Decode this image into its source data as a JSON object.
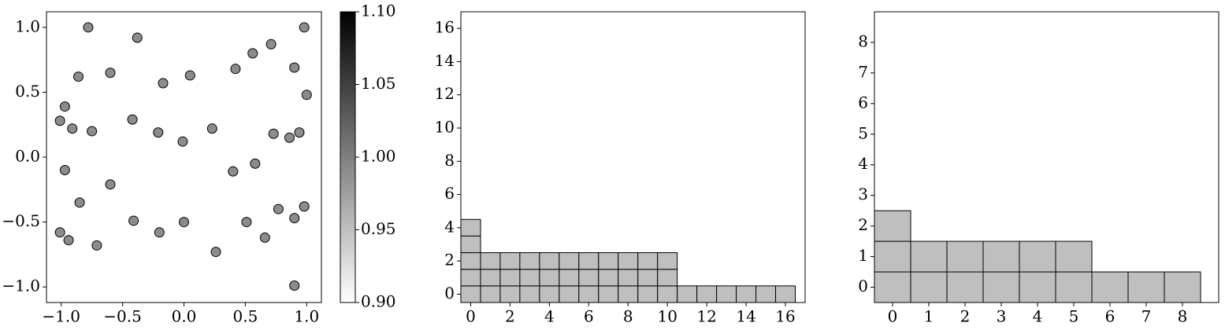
{
  "chart_data": [
    {
      "type": "scatter",
      "xlim": [
        -1.12,
        1.12
      ],
      "ylim": [
        -1.12,
        1.12
      ],
      "xticks": [
        -1.0,
        -0.5,
        0.0,
        0.5,
        1.0
      ],
      "xtick_labels": [
        "−1.0",
        "−0.5",
        "0.0",
        "0.5",
        "1.0"
      ],
      "yticks": [
        1.0,
        0.5,
        0.0,
        -0.5,
        -1.0
      ],
      "ytick_labels": [
        "1.0",
        "0.5",
        "0.0",
        "−0.5",
        "−1.0"
      ],
      "marker_color": "#8c8c8c",
      "points": [
        [
          -0.78,
          1.0
        ],
        [
          -0.38,
          0.92
        ],
        [
          -0.86,
          0.62
        ],
        [
          -0.6,
          0.65
        ],
        [
          -0.17,
          0.57
        ],
        [
          0.05,
          0.63
        ],
        [
          0.42,
          0.68
        ],
        [
          0.56,
          0.8
        ],
        [
          0.71,
          0.87
        ],
        [
          0.98,
          1.0
        ],
        [
          0.9,
          0.69
        ],
        [
          -0.97,
          0.39
        ],
        [
          1.0,
          0.48
        ],
        [
          -1.01,
          0.28
        ],
        [
          -0.91,
          0.22
        ],
        [
          -0.75,
          0.2
        ],
        [
          -0.42,
          0.29
        ],
        [
          -0.21,
          0.19
        ],
        [
          -0.01,
          0.12
        ],
        [
          0.23,
          0.22
        ],
        [
          0.73,
          0.18
        ],
        [
          0.86,
          0.15
        ],
        [
          0.94,
          0.19
        ],
        [
          -0.97,
          -0.1
        ],
        [
          0.4,
          -0.11
        ],
        [
          0.58,
          -0.05
        ],
        [
          -0.6,
          -0.21
        ],
        [
          -0.85,
          -0.35
        ],
        [
          0.77,
          -0.4
        ],
        [
          0.98,
          -0.38
        ],
        [
          -0.41,
          -0.49
        ],
        [
          0.0,
          -0.5
        ],
        [
          0.51,
          -0.5
        ],
        [
          0.9,
          -0.47
        ],
        [
          -1.01,
          -0.58
        ],
        [
          -0.94,
          -0.64
        ],
        [
          -0.2,
          -0.58
        ],
        [
          0.66,
          -0.62
        ],
        [
          -0.71,
          -0.68
        ],
        [
          0.26,
          -0.73
        ],
        [
          0.9,
          -0.99
        ]
      ]
    },
    {
      "type": "colorbar",
      "range": [
        0.9,
        1.1
      ],
      "ticks": [
        1.1,
        1.05,
        1.0,
        0.95,
        0.9
      ],
      "tick_labels": [
        "1.10",
        "1.05",
        "1.00",
        "0.95",
        "0.90"
      ],
      "colors": [
        "#ffffff",
        "#000000"
      ]
    },
    {
      "type": "bar",
      "xlim": [
        -0.5,
        17
      ],
      "ylim": [
        -0.5,
        17
      ],
      "xticks": [
        0,
        2,
        4,
        6,
        8,
        10,
        12,
        14,
        16
      ],
      "xtick_labels": [
        "0",
        "2",
        "4",
        "6",
        "8",
        "10",
        "12",
        "14",
        "16"
      ],
      "yticks": [
        16,
        14,
        12,
        10,
        8,
        6,
        4,
        2,
        0
      ],
      "ytick_labels": [
        "16",
        "14",
        "12",
        "10",
        "8",
        "6",
        "4",
        "2",
        "0"
      ],
      "categories": [
        0,
        1,
        2,
        3,
        4,
        5,
        6,
        7,
        8,
        9,
        10,
        11,
        12,
        13,
        14,
        15,
        16
      ],
      "values": [
        5,
        3,
        3,
        3,
        3,
        3,
        3,
        3,
        3,
        3,
        3,
        1,
        1,
        1,
        1,
        1,
        1
      ],
      "fill": "#bfbfbf"
    },
    {
      "type": "bar",
      "xlim": [
        -0.5,
        9
      ],
      "ylim": [
        -0.5,
        9
      ],
      "xticks": [
        0,
        1,
        2,
        3,
        4,
        5,
        6,
        7,
        8
      ],
      "xtick_labels": [
        "0",
        "1",
        "2",
        "3",
        "4",
        "5",
        "6",
        "7",
        "8"
      ],
      "yticks": [
        8,
        7,
        6,
        5,
        4,
        3,
        2,
        1,
        0
      ],
      "ytick_labels": [
        "8",
        "7",
        "6",
        "5",
        "4",
        "3",
        "2",
        "1",
        "0"
      ],
      "categories": [
        0,
        1,
        2,
        3,
        4,
        5,
        6,
        7,
        8
      ],
      "values": [
        3,
        2,
        2,
        2,
        2,
        2,
        1,
        1,
        1
      ],
      "fill": "#bfbfbf"
    }
  ]
}
